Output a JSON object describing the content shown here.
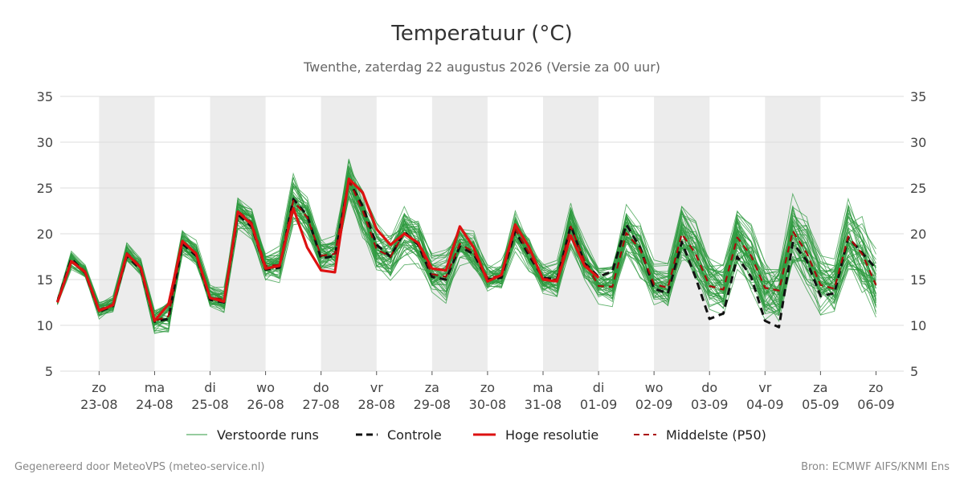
{
  "title": "Temperatuur (°C)",
  "subtitle": "Twenthe, zaterdag 22 augustus 2026 (Versie za 00 uur)",
  "footer_left": "Gegenereerd door MeteoVPS (meteo-service.nl)",
  "footer_right": "Bron: ECMWF AIFS/KNMI Ens",
  "colors": {
    "ensemble": "#2e9a3f",
    "control": "#111111",
    "highres": "#dd1111",
    "median": "#aa0a0a",
    "band": "#ececec",
    "grid": "#dddddd"
  },
  "chart_data": {
    "type": "line",
    "xlabel": "",
    "ylabel": "",
    "ylim": [
      5,
      35
    ],
    "yticks": [
      5,
      10,
      15,
      20,
      25,
      30,
      35
    ],
    "xlim": [
      -0.7,
      14.5
    ],
    "x_unit": "days (0 = 22-08 12h)",
    "x_ticks": [
      {
        "day": "zo",
        "date": "23-08"
      },
      {
        "day": "ma",
        "date": "24-08"
      },
      {
        "day": "di",
        "date": "25-08"
      },
      {
        "day": "wo",
        "date": "26-08"
      },
      {
        "day": "do",
        "date": "27-08"
      },
      {
        "day": "vr",
        "date": "28-08"
      },
      {
        "day": "za",
        "date": "29-08"
      },
      {
        "day": "zo",
        "date": "30-08"
      },
      {
        "day": "ma",
        "date": "31-08"
      },
      {
        "day": "di",
        "date": "01-09"
      },
      {
        "day": "wo",
        "date": "02-09"
      },
      {
        "day": "do",
        "date": "03-09"
      },
      {
        "day": "vr",
        "date": "04-09"
      },
      {
        "day": "za",
        "date": "05-09"
      },
      {
        "day": "zo",
        "date": "06-09"
      }
    ],
    "shaded_days": [
      "23-08",
      "25-08",
      "27-08",
      "29-08",
      "31-08",
      "02-09",
      "04-09"
    ],
    "grid": true,
    "legend": {
      "placement": "bottom",
      "entries": [
        "Verstoorde runs",
        "Controle",
        "Hoge resolutie",
        "Middelste (P50)"
      ]
    },
    "x": [
      -0.75,
      -0.5,
      -0.25,
      0,
      0.25,
      0.5,
      0.75,
      1,
      1.25,
      1.5,
      1.75,
      2,
      2.25,
      2.5,
      2.75,
      3,
      3.25,
      3.5,
      3.75,
      4,
      4.25,
      4.5,
      4.75,
      5,
      5.25,
      5.5,
      5.75,
      6,
      6.25,
      6.5,
      6.75,
      7,
      7.25,
      7.5,
      7.75,
      8,
      8.25,
      8.5,
      8.75,
      9,
      9.25,
      9.5,
      9.75,
      10,
      10.25,
      10.5,
      10.75,
      11,
      11.25,
      11.5,
      11.75,
      12,
      12.25,
      12.5,
      12.75,
      13,
      13.25,
      13.5,
      13.75,
      14,
      14.25,
      14.5
    ],
    "series": [
      {
        "name": "Hoge resolutie",
        "style": "solid",
        "values": [
          12.5,
          17.0,
          15.8,
          11.6,
          12.2,
          17.8,
          16.3,
          10.5,
          12.3,
          19.2,
          17.8,
          13.0,
          12.6,
          22.4,
          21.0,
          16.2,
          16.5,
          22.8,
          18.5,
          16.0,
          15.8,
          26.0,
          24.5,
          20.5,
          18.8,
          20.0,
          19.0,
          16.2,
          16.0,
          20.8,
          18.5,
          14.8,
          15.5,
          21.0,
          18.5,
          15.0,
          14.8,
          19.8,
          16.5,
          15.2,
          null,
          null,
          null,
          null,
          null,
          null,
          null,
          null,
          null,
          null,
          null,
          null,
          null,
          null,
          null,
          null,
          null,
          null,
          null,
          null,
          null,
          null
        ]
      },
      {
        "name": "Controle",
        "style": "dashed",
        "values": [
          12.6,
          17.3,
          15.7,
          11.5,
          12.1,
          17.6,
          16.1,
          10.4,
          10.7,
          18.9,
          17.6,
          12.8,
          12.5,
          22.1,
          20.8,
          16.1,
          16.3,
          23.8,
          22.0,
          17.3,
          17.6,
          25.8,
          23.0,
          18.8,
          17.5,
          20.2,
          18.8,
          15.3,
          15.0,
          18.6,
          17.8,
          15.0,
          15.2,
          20.3,
          17.6,
          15.2,
          15.0,
          20.9,
          16.8,
          15.3,
          15.9,
          21.0,
          18.5,
          14.0,
          13.5,
          19.1,
          15.2,
          10.7,
          11.3,
          17.5,
          15.3,
          10.5,
          9.8,
          19.0,
          17.1,
          13.2,
          13.5,
          19.6,
          17.9,
          16.2,
          null,
          null
        ]
      },
      {
        "name": "Middelste (P50)",
        "style": "dashed-thin",
        "values": [
          12.6,
          17.1,
          15.9,
          11.7,
          12.3,
          17.9,
          16.4,
          10.5,
          11.0,
          19.1,
          17.9,
          13.1,
          12.8,
          22.5,
          21.2,
          16.5,
          16.6,
          23.6,
          21.8,
          17.6,
          17.8,
          25.9,
          22.5,
          18.3,
          17.5,
          20.1,
          18.9,
          15.6,
          15.3,
          18.9,
          18.0,
          15.2,
          15.4,
          20.5,
          17.9,
          15.1,
          15.0,
          20.8,
          17.0,
          14.3,
          14.2,
          20.1,
          18.3,
          14.5,
          14.1,
          20.0,
          17.8,
          14.3,
          13.9,
          19.6,
          17.6,
          14.1,
          13.8,
          20.3,
          17.9,
          14.4,
          14.0,
          19.7,
          17.8,
          14.4,
          null,
          null
        ]
      }
    ],
    "ensemble": {
      "name": "Verstoorde runs",
      "members": 50,
      "median_series": "Middelste (P50)",
      "spread": [
        0.4,
        0.9,
        0.6,
        0.8,
        0.8,
        0.9,
        0.8,
        1.1,
        1.6,
        1.2,
        1.1,
        1.0,
        1.2,
        1.7,
        1.6,
        1.2,
        1.5,
        2.2,
        2.0,
        1.7,
        1.8,
        2.2,
        2.6,
        2.6,
        2.4,
        2.6,
        2.5,
        1.9,
        2.2,
        2.1,
        2.0,
        1.4,
        1.5,
        2.0,
        1.8,
        1.6,
        1.8,
        2.2,
        2.0,
        1.8,
        1.9,
        2.5,
        2.5,
        2.0,
        1.9,
        2.6,
        2.8,
        2.7,
        2.6,
        3.2,
        3.2,
        3.1,
        3.2,
        3.6,
        3.5,
        3.2,
        3.1,
        3.8,
        3.8,
        3.5,
        3.2,
        3.0
      ]
    }
  }
}
